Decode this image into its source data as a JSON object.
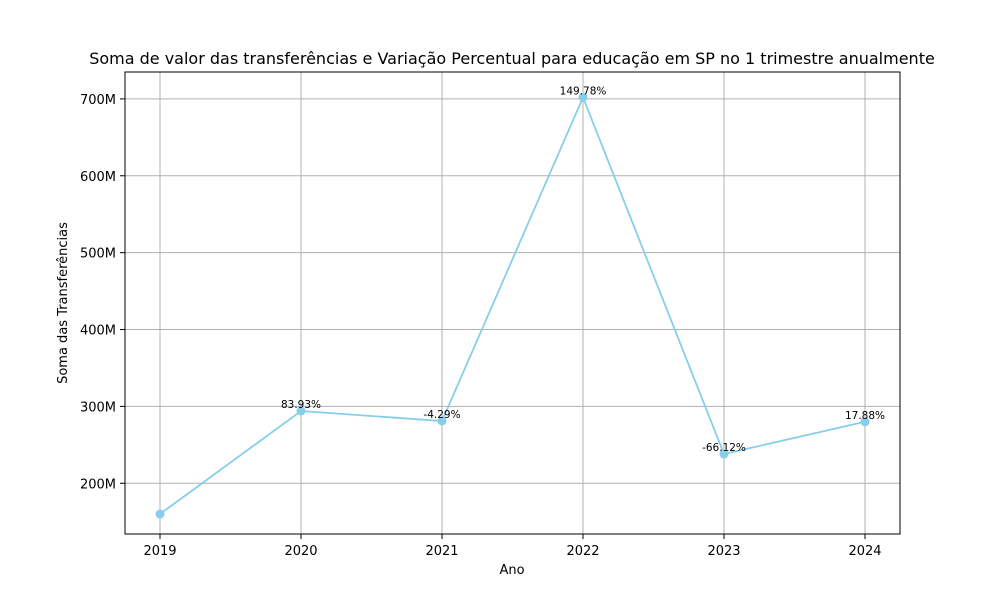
{
  "chart_data": {
    "type": "line",
    "title": "Soma de valor das transferências e Variação Percentual para educação em SP no 1 trimestre anualmente",
    "xlabel": "Ano",
    "ylabel": "Soma das Transferências",
    "x": [
      "2019",
      "2020",
      "2021",
      "2022",
      "2023",
      "2024"
    ],
    "series": [
      {
        "values": [
          160000000,
          294000000,
          281000000,
          702000000,
          238000000,
          280000000
        ],
        "labels": [
          "",
          "83.93%",
          "-4.29%",
          "149.78%",
          "-66.12%",
          "17.88%"
        ]
      }
    ],
    "ylim": [
      134000000,
      735000000
    ],
    "yticks": [
      200000000,
      300000000,
      400000000,
      500000000,
      600000000,
      700000000
    ],
    "ytick_labels": [
      "200M",
      "300M",
      "400M",
      "500M",
      "600M",
      "700M"
    ],
    "grid": true,
    "color": "#87ceeb"
  }
}
